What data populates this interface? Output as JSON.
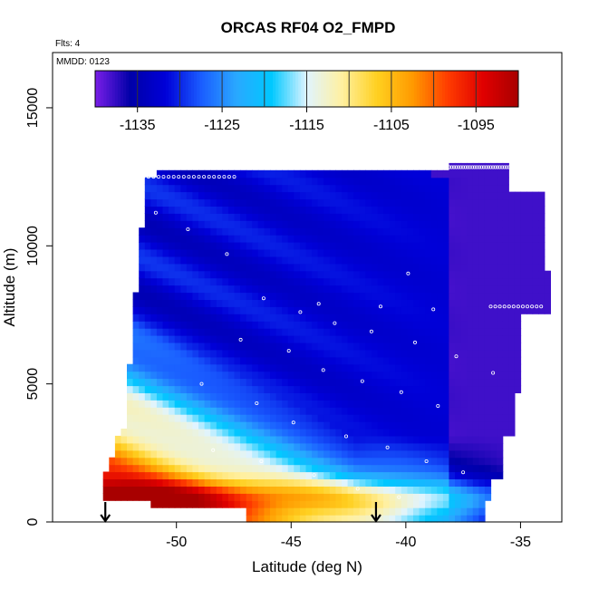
{
  "chart_data": {
    "type": "heatmap",
    "title": "ORCAS RF04 O2_FMPD",
    "top_left_note": "Flts: 4",
    "inset_note": "MMDD: 0123",
    "xlabel": "Latitude (deg N)",
    "ylabel": "Altitude (m)",
    "xlim": [
      -55.4,
      -33.2
    ],
    "ylim": [
      0,
      17000
    ],
    "x_ticks": [
      -50,
      -45,
      -40,
      -35
    ],
    "x_tick_labels": [
      "-50",
      "-45",
      "-40",
      "-35"
    ],
    "y_ticks": [
      0,
      5000,
      10000,
      15000
    ],
    "y_tick_labels": [
      "0",
      "5000",
      "10000",
      "15000"
    ],
    "grid": false,
    "colorbar": {
      "placement": "top-inside",
      "range": [
        -1140,
        -1090
      ],
      "ticks": [
        -1135,
        -1125,
        -1115,
        -1105,
        -1095
      ],
      "tick_labels": [
        "-1135",
        "-1125",
        "-1115",
        "-1105",
        "-1095"
      ],
      "colors": [
        "#7a1ee8",
        "#0000a8",
        "#0000d8",
        "#1a5cff",
        "#2aa8ff",
        "#00c8ff",
        "#e0f4ff",
        "#fff0a0",
        "#ffd020",
        "#ff9a00",
        "#ff3c00",
        "#e00000",
        "#a80000"
      ]
    },
    "field": {
      "description_values": "O2_FMPD vs latitude and altitude",
      "lat_range": [
        -53.2,
        -33.6
      ],
      "alt_range": [
        0,
        12900
      ],
      "surface_value_south": -1093,
      "surface_value_north": -1107,
      "upper_value": -1132,
      "top_north_value": -1138
    },
    "flight_markers": [
      {
        "lat": -53.1,
        "alt": 0
      },
      {
        "lat": -41.3,
        "alt": 0
      }
    ],
    "point_color": "#ffffff"
  }
}
